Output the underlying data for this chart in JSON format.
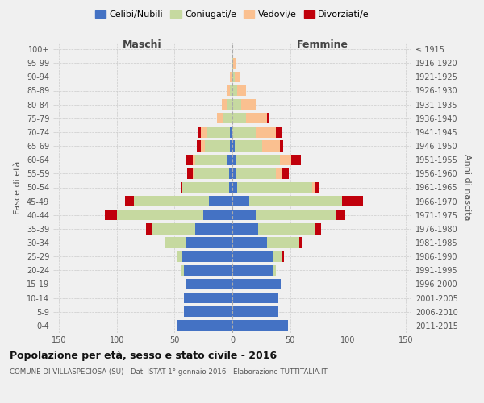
{
  "age_groups": [
    "0-4",
    "5-9",
    "10-14",
    "15-19",
    "20-24",
    "25-29",
    "30-34",
    "35-39",
    "40-44",
    "45-49",
    "50-54",
    "55-59",
    "60-64",
    "65-69",
    "70-74",
    "75-79",
    "80-84",
    "85-89",
    "90-94",
    "95-99",
    "100+"
  ],
  "birth_years": [
    "2011-2015",
    "2006-2010",
    "2001-2005",
    "1996-2000",
    "1991-1995",
    "1986-1990",
    "1981-1985",
    "1976-1980",
    "1971-1975",
    "1966-1970",
    "1961-1965",
    "1956-1960",
    "1951-1955",
    "1946-1950",
    "1941-1945",
    "1936-1940",
    "1931-1935",
    "1926-1930",
    "1921-1925",
    "1916-1920",
    "≤ 1915"
  ],
  "male": {
    "celibi": [
      48,
      42,
      42,
      40,
      42,
      43,
      40,
      32,
      25,
      20,
      3,
      3,
      4,
      2,
      2,
      0,
      0,
      0,
      0,
      0,
      0
    ],
    "coniugati": [
      0,
      0,
      0,
      0,
      2,
      5,
      18,
      38,
      75,
      65,
      40,
      30,
      28,
      22,
      20,
      8,
      5,
      2,
      1,
      0,
      0
    ],
    "vedovi": [
      0,
      0,
      0,
      0,
      0,
      0,
      0,
      0,
      0,
      0,
      0,
      1,
      2,
      3,
      5,
      5,
      4,
      2,
      1,
      0,
      0
    ],
    "divorziati": [
      0,
      0,
      0,
      0,
      0,
      0,
      0,
      5,
      10,
      8,
      2,
      5,
      6,
      4,
      2,
      0,
      0,
      0,
      0,
      0,
      0
    ]
  },
  "female": {
    "nubili": [
      48,
      40,
      40,
      42,
      35,
      35,
      30,
      22,
      20,
      15,
      4,
      3,
      3,
      2,
      0,
      0,
      0,
      0,
      0,
      0,
      0
    ],
    "coniugate": [
      0,
      0,
      0,
      0,
      3,
      8,
      28,
      50,
      70,
      80,
      65,
      35,
      38,
      24,
      20,
      12,
      8,
      4,
      2,
      1,
      0
    ],
    "vedove": [
      0,
      0,
      0,
      0,
      0,
      0,
      0,
      0,
      0,
      0,
      2,
      5,
      10,
      15,
      18,
      18,
      12,
      8,
      5,
      2,
      0
    ],
    "divorziate": [
      0,
      0,
      0,
      0,
      0,
      2,
      2,
      5,
      8,
      18,
      4,
      6,
      8,
      3,
      5,
      2,
      0,
      0,
      0,
      0,
      0
    ]
  },
  "colors": {
    "celibi": "#4472C4",
    "coniugati": "#C6D9A0",
    "vedovi": "#FAC090",
    "divorziati": "#C0000B"
  },
  "xlim": 155,
  "title": "Popolazione per età, sesso e stato civile - 2016",
  "subtitle": "COMUNE DI VILLASPECIOSA (SU) - Dati ISTAT 1° gennaio 2016 - Elaborazione TUTTITALIA.IT",
  "ylabel_left": "Fasce di età",
  "ylabel_right": "Anni di nascita",
  "xlabel_left": "Maschi",
  "xlabel_right": "Femmine",
  "legend_labels": [
    "Celibi/Nubili",
    "Coniugati/e",
    "Vedovi/e",
    "Divorziati/e"
  ],
  "bg_color": "#f0f0f0",
  "grid_color": "#cccccc"
}
